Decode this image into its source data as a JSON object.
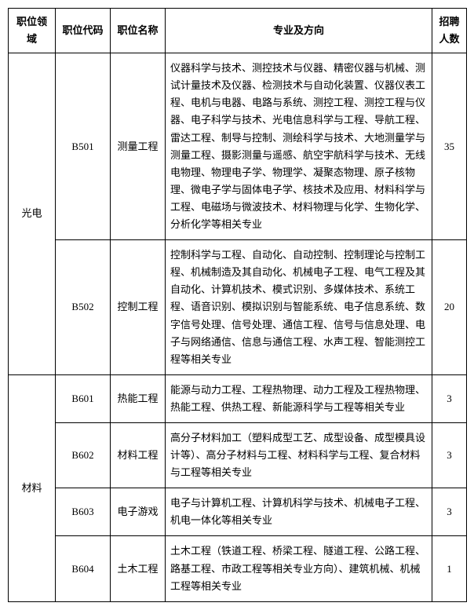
{
  "headers": {
    "field": "职位领域",
    "code": "职位代码",
    "name": "职位名称",
    "major": "专业及方向",
    "count": "招聘人数"
  },
  "rows": [
    {
      "field": "光电",
      "code": "B501",
      "name": "测量工程",
      "major": "仪器科学与技术、测控技术与仪器、精密仪器与机械、测试计量技术及仪器、检测技术与自动化装置、仪器仪表工程、电机与电器、电路与系统、测控工程、测控工程与仪器、电子科学与技术、光电信息科学与工程、导航工程、雷达工程、制导与控制、测绘科学与技术、大地测量学与测量工程、摄影测量与遥感、航空宇航科学与技术、无线电物理、物理电子学、物理学、凝聚态物理、原子核物理、微电子学与固体电子学、核技术及应用、材料科学与工程、电磁场与微波技术、材料物理与化学、生物化学、分析化学等相关专业",
      "count": "35"
    },
    {
      "field": "",
      "code": "B502",
      "name": "控制工程",
      "major": "控制科学与工程、自动化、自动控制、控制理论与控制工程、机械制造及其自动化、机械电子工程、电气工程及其自动化、计算机技术、模式识别、多媒体技术、系统工程、语音识别、模拟识别与智能系统、电子信息系统、数字信号处理、信号处理、通信工程、信号与信息处理、电子与网络通信、信息与通信工程、水声工程、智能测控工程等相关专业",
      "count": "20"
    },
    {
      "field": "材料",
      "code": "B601",
      "name": "热能工程",
      "major": "能源与动力工程、工程热物理、动力工程及工程热物理、热能工程、供热工程、新能源科学与工程等相关专业",
      "count": "3"
    },
    {
      "field": "",
      "code": "B602",
      "name": "材料工程",
      "major": "高分子材料加工（塑料成型工艺、成型设备、成型模具设计等）、高分子材料与工程、材料科学与工程、复合材料与工程等相关专业",
      "count": "3"
    },
    {
      "field": "",
      "code": "B603",
      "name": "电子游戏",
      "major": "电子与计算机工程、计算机科学与技术、机械电子工程、机电一体化等相关专业",
      "count": "3"
    },
    {
      "field": "",
      "code": "B604",
      "name": "土木工程",
      "major": "土木工程（铁道工程、桥梁工程、隧道工程、公路工程、路基工程、市政工程等相关专业方向）、建筑机械、机械工程等相关专业",
      "count": "1"
    }
  ]
}
